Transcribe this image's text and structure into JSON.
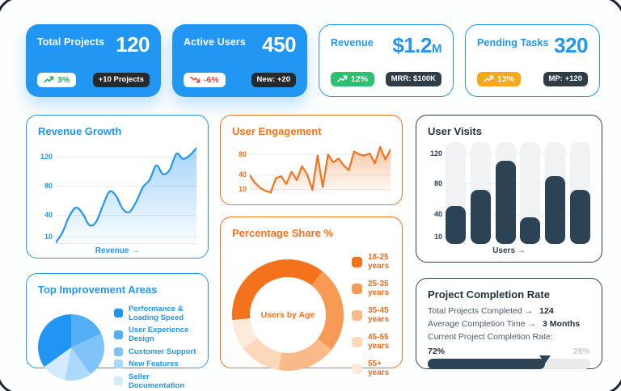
{
  "stat_cards": [
    {
      "title": "Total Projects",
      "value": "120",
      "value_suffix": "",
      "trend_label": "3%",
      "trend_dir": "up",
      "pill_style": "pill-white-green",
      "badge": "+10 Projects",
      "badge_style": "badge-black",
      "card_style": "solid"
    },
    {
      "title": "Active Users",
      "value": "450",
      "value_suffix": "",
      "trend_label": "-6%",
      "trend_dir": "down",
      "pill_style": "pill-white-red",
      "badge": "New: +20",
      "badge_style": "badge-black",
      "card_style": "solid"
    },
    {
      "title": "Revenue",
      "value": "$1.2",
      "value_suffix": "M",
      "trend_label": "12%",
      "trend_dir": "up",
      "pill_style": "pill-green",
      "badge": "MRR: $100K",
      "badge_style": "badge-navy",
      "card_style": "outline"
    },
    {
      "title": "Pending Tasks",
      "value": "320",
      "value_suffix": "",
      "trend_label": "13%",
      "trend_dir": "up",
      "pill_style": "pill-amber",
      "badge": "MP: +120",
      "badge_style": "badge-navy",
      "card_style": "outline"
    }
  ],
  "chart_data": [
    {
      "key": "revenue_growth",
      "type": "area",
      "title": "Revenue Growth",
      "xlabel": "Revenue →",
      "color": "#2196f3",
      "smooth": true,
      "baseline": true,
      "ymax": 140,
      "yticks": [
        120,
        80,
        40,
        10
      ],
      "values": [
        2,
        16,
        38,
        50,
        42,
        26,
        30,
        52,
        72,
        66,
        48,
        44,
        58,
        78,
        88,
        108,
        96,
        102,
        124,
        117,
        122,
        132
      ]
    },
    {
      "key": "user_engagement",
      "type": "area",
      "title": "User Engagement",
      "xlabel": "",
      "color": "#f4721b",
      "smooth": false,
      "baseline": false,
      "ymax": 105,
      "yticks": [
        80,
        40,
        10
      ],
      "values": [
        38,
        22,
        12,
        6,
        3,
        32,
        36,
        20,
        45,
        28,
        56,
        40,
        8,
        78,
        14,
        80,
        64,
        72,
        58,
        48,
        86,
        80,
        78,
        82,
        62,
        95,
        70,
        90
      ]
    },
    {
      "key": "user_visits",
      "type": "bar",
      "title": "User Visits",
      "xlabel": "Users →",
      "color": "#2c4355",
      "track_color": "#f1f2f3",
      "baseline": false,
      "ymax": 135,
      "yticks": [
        120,
        80,
        40,
        10
      ],
      "values": [
        50,
        72,
        110,
        35,
        90,
        72
      ]
    },
    {
      "key": "improvement_areas",
      "type": "pie",
      "title": "Top Improvement Areas",
      "start_angle": 0,
      "draw_order": [
        1,
        2,
        3,
        4,
        0
      ],
      "slices": [
        {
          "label": "Performance & Loading Speed",
          "value": 35,
          "color": "#2095f3"
        },
        {
          "label": "User Experience Design",
          "value": 18,
          "color": "#54aef6"
        },
        {
          "label": "Customer Support",
          "value": 22,
          "color": "#7fc3f8"
        },
        {
          "label": "New Features",
          "value": 13,
          "color": "#abd8fb"
        },
        {
          "label": "Seller Documentation",
          "value": 12,
          "color": "#d4eafd"
        }
      ]
    },
    {
      "key": "age_share",
      "type": "donut",
      "title": "Percentage Share %",
      "center_label": "Users by Age",
      "start_angle": -95,
      "draw_order": [
        0,
        1,
        2,
        3,
        4
      ],
      "slices": [
        {
          "label": "18-25 years",
          "value": 37,
          "color": "#f4721b"
        },
        {
          "label": "25-35 years",
          "value": 25,
          "color": "#f79a55"
        },
        {
          "label": "35-45 years",
          "value": 17,
          "color": "#fab988"
        },
        {
          "label": "45-55 years",
          "value": 12,
          "color": "#fcd7ba"
        },
        {
          "label": "55+ years",
          "value": 9,
          "color": "#fdeadb"
        }
      ]
    },
    {
      "key": "completion",
      "type": "progress",
      "title": "Project Completion Rate",
      "rows": [
        {
          "label": "Total Projects Completed →",
          "value": "124"
        },
        {
          "label": "Average Completion Time →",
          "value": "3 Months"
        }
      ],
      "caption": "Current Project Completion Rate:",
      "percent": 72,
      "percent_label": "72%",
      "remaining_label": "28%",
      "fill_color": "#2c4355",
      "track_color": "#e8eaec"
    }
  ]
}
